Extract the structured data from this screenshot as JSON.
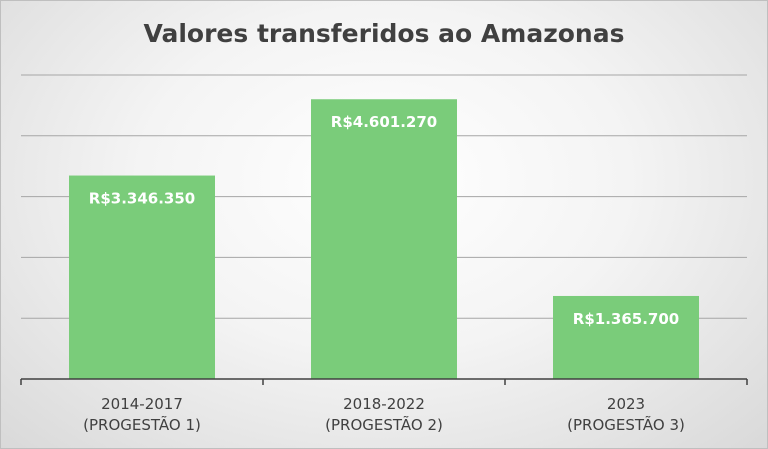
{
  "chart_data": {
    "type": "bar",
    "title": "Valores transferidos ao Amazonas",
    "categories": [
      {
        "line1": "2014-2017",
        "line2": "(PROGESTÃO 1)"
      },
      {
        "line1": "2018-2022",
        "line2": "(PROGESTÃO 2)"
      },
      {
        "line1": "2023",
        "line2": "(PROGESTÃO 3)"
      }
    ],
    "values": [
      3346350,
      4601270,
      1365700
    ],
    "data_labels": [
      "R$3.346.350",
      "R$4.601.270",
      "R$1.365.700"
    ],
    "ylim": [
      0,
      5000000
    ],
    "grid": true,
    "bar_color": "#7acc7a",
    "label_color": "#ffffff"
  }
}
